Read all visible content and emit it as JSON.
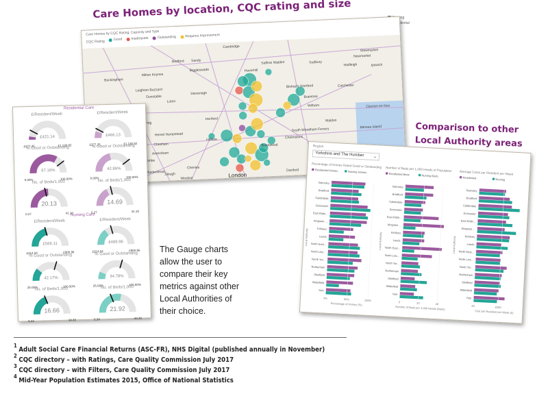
{
  "map_section": {
    "title": "Care Homes by location, CQC rating and size",
    "visual_title": "Care Homes by CQC Rating, Capacity and Type",
    "legend_label": "CQC Rating",
    "legend": [
      {
        "label": "Good",
        "color": "#20a99a"
      },
      {
        "label": "Inadequate",
        "color": "#e8554a"
      },
      {
        "label": "Outstanding",
        "color": "#8e4a9c"
      },
      {
        "label": "Requires Improvement",
        "color": "#f2c12e"
      }
    ],
    "type_legend": [
      "Nursing",
      "Residential"
    ],
    "places": [
      "Cambridge",
      "Bedford",
      "Sandy",
      "Biggleswade",
      "Milton Keynes",
      "Buckingham",
      "Leighton Buzzard",
      "Dunstable",
      "Luton",
      "Stevenage",
      "Hertford",
      "Harlow",
      "Bishop's Stortford",
      "Saffron Walden",
      "Haverhill",
      "Sudbury",
      "Hadleigh",
      "Ipswich",
      "Braintree",
      "Colchester",
      "Witham",
      "Chelmsford",
      "Maldon",
      "South Woodham Ferrers",
      "Brentwood",
      "Aylesbury",
      "Tring",
      "Hemel Hempstead",
      "Chesham",
      "Amersham",
      "High Wycombe",
      "Marlow",
      "Maidenhead",
      "Slough",
      "Windsor",
      "London",
      "Reading",
      "Goring",
      "Sonning Common",
      "Dartford",
      "Chenies",
      "Stowmarket",
      "Newmarket",
      "Clacton-on-Sea",
      "Mersea Island"
    ]
  },
  "gauges": {
    "residential_label": "Residential Care",
    "nursing_label": "Nursing Care",
    "items": [
      {
        "title": "£/Resident/Week",
        "value": 421.14,
        "display": "£421.14",
        "min": "£377.25",
        "max": "£1,130.82",
        "minv": 377.25,
        "maxv": 1130.82,
        "target": 500,
        "group": "residential",
        "shade": "dark"
      },
      {
        "title": "£/Resident/Week",
        "value": 466.13,
        "display": "£466.13",
        "min": "£377.25",
        "max": "£1,130.82",
        "minv": 377.25,
        "maxv": 1130.82,
        "target": 500,
        "group": "residential",
        "shade": "light"
      },
      {
        "title": "% Good or Outstanding",
        "value": 67.16,
        "display": "67.16%",
        "min": "0.00%",
        "max": "100.00%",
        "minv": 0,
        "maxv": 100,
        "target": 80,
        "group": "residential",
        "shade": "dark"
      },
      {
        "title": "% Good or Outstanding",
        "value": 42.86,
        "display": "42.86%",
        "min": "0.00%",
        "max": "100.00%",
        "minv": 0,
        "maxv": 100,
        "target": 80,
        "group": "residential",
        "shade": "light"
      },
      {
        "title": "No. of Beds/1,000",
        "value": 20.13,
        "display": "20.13",
        "min": "0.27",
        "max": "41.10",
        "minv": 0.27,
        "maxv": 41.1,
        "target": 18,
        "group": "residential",
        "shade": "dark"
      },
      {
        "title": "No. of Beds/1,000",
        "value": 14.69,
        "display": "14.69",
        "min": "0.27",
        "max": "41.10",
        "minv": 0.27,
        "maxv": 41.1,
        "target": 18,
        "group": "residential",
        "shade": "light"
      },
      {
        "title": "£/Resident/Week",
        "value": 566.11,
        "display": "£566.11",
        "min": "£314.04",
        "max": "£900.86",
        "minv": 314.04,
        "maxv": 900.86,
        "target": 560,
        "group": "nursing",
        "shade": "dark"
      },
      {
        "title": "£/Resident/Week",
        "value": 489.96,
        "display": "£489.96",
        "min": "£314.04",
        "max": "£900.86",
        "minv": 314.04,
        "maxv": 900.86,
        "target": 560,
        "group": "nursing",
        "shade": "light"
      },
      {
        "title": "% Good or Outstanding",
        "value": 42.17,
        "display": "42.17%",
        "min": "25.00%",
        "max": "100.00%",
        "minv": 25,
        "maxv": 100,
        "target": 70,
        "group": "nursing",
        "shade": "dark"
      },
      {
        "title": "% Good or Outstanding",
        "value": 34.78,
        "display": "34.78%",
        "min": "25.00%",
        "max": "100.00%",
        "minv": 25,
        "maxv": 100,
        "target": 70,
        "group": "nursing",
        "shade": "light"
      },
      {
        "title": "No. of Beds/1,000",
        "value": 16.66,
        "display": "16.66",
        "min": "5.34",
        "max": "34.40",
        "minv": 5.34,
        "maxv": 34.4,
        "target": 16.5,
        "group": "nursing",
        "shade": "dark"
      },
      {
        "title": "No. of Beds/1,000",
        "value": 21.92,
        "display": "21.92",
        "min": "5.34",
        "max": "34.40",
        "minv": 5.34,
        "maxv": 34.4,
        "target": 16.5,
        "group": "nursing",
        "shade": "light"
      }
    ],
    "colors": {
      "residential_dark": "#9b5a9e",
      "residential_light": "#c9a2cc",
      "nursing_dark": "#23a597",
      "nursing_light": "#7ccfc5",
      "track": "#e4e4e4"
    }
  },
  "comparison": {
    "title_line1": "Comparison to other",
    "title_line2": "Local Authority areas",
    "region_label": "Region",
    "region_value": "Yorkshire and The Humber"
  },
  "chart_data": [
    {
      "type": "bar",
      "orientation": "horizontal",
      "title": "Percentage of Homes Rated Good or Outstanding",
      "ylabel": "Local Authority",
      "xlabel": "Percentage of Homes (%)",
      "xlim": [
        0,
        100
      ],
      "xticks": [
        "0%",
        "50%",
        "100%"
      ],
      "categories": [
        "Barnsley",
        "Bradford",
        "Calderdale",
        "Doncaster",
        "East Ridin...",
        "Kingston ...",
        "Kirklees",
        "Leeds",
        "North East...",
        "North Linc...",
        "North Yor...",
        "Rotherham",
        "Sheffield",
        "Wakefield",
        "York"
      ],
      "series": [
        {
          "name": "Residential Homes",
          "color": "#9b5a9e",
          "values": [
            80,
            65,
            65,
            88,
            85,
            88,
            57,
            62,
            70,
            70,
            80,
            72,
            65,
            63,
            58
          ]
        },
        {
          "name": "Nursing Homes",
          "color": "#23a597",
          "values": [
            78,
            72,
            67,
            95,
            90,
            75,
            35,
            35,
            75,
            75,
            60,
            65,
            55,
            30,
            60
          ]
        }
      ]
    },
    {
      "type": "bar",
      "orientation": "horizontal",
      "title": "Number of Beds per 1,000 Heads of Population",
      "ylabel": "Local Authority",
      "xlabel": "Number of Beds per 1,000 Heads (Beds)",
      "xlim": [
        0,
        45
      ],
      "xticks": [
        "0",
        "20",
        "40"
      ],
      "categories": [
        "Barnsley",
        "Bradford",
        "Calderdale",
        "Doncaster",
        "East Ridin...",
        "Kingston ...",
        "Kirklees",
        "Leeds",
        "North East...",
        "North Linc...",
        "North Yor...",
        "Rotherham",
        "Sheffield",
        "Wakefield",
        "York"
      ],
      "series": [
        {
          "name": "Residential Beds",
          "color": "#9b5a9e",
          "values": [
            30,
            30,
            22,
            20,
            37,
            43,
            23,
            23,
            42,
            32,
            18,
            18,
            15,
            16,
            15
          ]
        },
        {
          "name": "Nursing Beds",
          "color": "#23a597",
          "values": [
            20,
            23,
            18,
            18,
            18,
            13,
            22,
            18,
            13,
            17,
            20,
            22,
            28,
            18,
            25
          ]
        }
      ]
    },
    {
      "type": "bar",
      "orientation": "horizontal",
      "title": "Average Costs per Resident per Week",
      "ylabel": "Local Authority",
      "xlabel": "Cost per Resident per Week (£)",
      "xlim": [
        0,
        850
      ],
      "xticks": [
        "£0",
        "£500"
      ],
      "categories": [
        "Barnsley",
        "Bradford",
        "Calderdale",
        "Doncaster",
        "East Ridin...",
        "Kingston ...",
        "Kirklees",
        "Leeds",
        "North East...",
        "North Linc...",
        "North Yor...",
        "Rotherham",
        "Sheffield",
        "Wakefield",
        "York"
      ],
      "series": [
        {
          "name": "Residential",
          "color": "#9b5a9e",
          "values": [
            540,
            620,
            670,
            600,
            570,
            550,
            660,
            500,
            530,
            500,
            630,
            540,
            510,
            490,
            620
          ]
        },
        {
          "name": "Nursing",
          "color": "#23a597",
          "values": [
            520,
            670,
            830,
            630,
            700,
            780,
            650,
            630,
            480,
            490,
            570,
            520,
            530,
            460,
            470
          ]
        }
      ]
    }
  ],
  "description": "The Gauge charts allow the user to compare their key metrics against other Local Authorities of their choice.",
  "footnotes": [
    {
      "num": "1",
      "text": "Adult Social Care Financial Returns (ASC-FR), NHS Digital (published annually in November)"
    },
    {
      "num": "2",
      "text": "CQC directory – with Ratings, Care Quality Commission July 2017"
    },
    {
      "num": "3",
      "text": "CQC directory – with Filters, Care Quality Commission July 2017"
    },
    {
      "num": "4",
      "text": "Mid-Year Population Estimates 2015, Office of National Statistics"
    }
  ]
}
